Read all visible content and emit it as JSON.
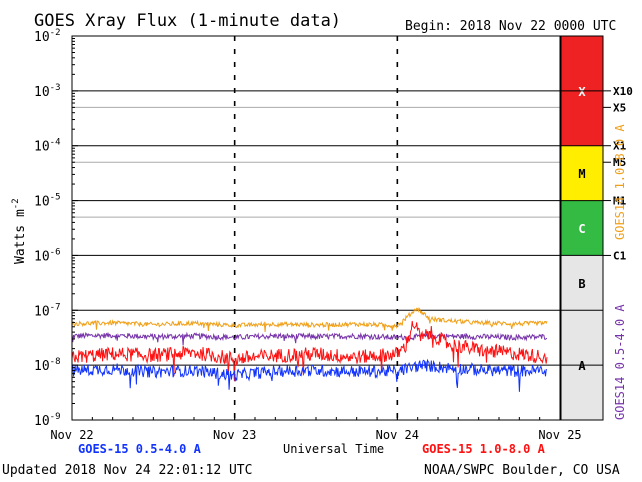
{
  "chart_data": {
    "type": "line",
    "title": "GOES Xray Flux (1-minute data)",
    "begin_label": "Begin:  2018 Nov 22 0000 UTC",
    "ylabel_main": "Watts m",
    "ylabel_exp": "-2",
    "xlabel": "Universal Time",
    "y_scale": "log",
    "ylim": [
      1e-09,
      0.01
    ],
    "xlim_days": [
      0,
      3
    ],
    "x_ticks": [
      "Nov 22",
      "Nov 23",
      "Nov 24",
      "Nov 25"
    ],
    "y_tick_exponents": [
      "-2",
      "-3",
      "-4",
      "-5",
      "-6",
      "-7",
      "-8",
      "-9"
    ],
    "y_tick_base": "10",
    "flare_classes": [
      {
        "label": "X",
        "from": 0.0001,
        "to": 0.01,
        "color": "#ee2222"
      },
      {
        "label": "M",
        "from": 1e-05,
        "to": 0.0001,
        "color": "#ffee00"
      },
      {
        "label": "C",
        "from": 1e-06,
        "to": 1e-05,
        "color": "#33bb44"
      },
      {
        "label": "B",
        "from": 1e-07,
        "to": 1e-06,
        "color": "#e6e6e6"
      },
      {
        "label": "A",
        "from": 1e-09,
        "to": 1e-07,
        "color": "#e6e6e6"
      }
    ],
    "level_markers": [
      {
        "label": "X10",
        "value": 0.001
      },
      {
        "label": "X5",
        "value": 0.0005
      },
      {
        "label": "X1",
        "value": 0.0001
      },
      {
        "label": "M5",
        "value": 5e-05
      },
      {
        "label": "M1",
        "value": 1e-05
      },
      {
        "label": "C1",
        "value": 1e-06
      }
    ],
    "series": [
      {
        "name": "GOES14 0.5-4.0 A",
        "color": "#7733aa",
        "points": [
          [
            0,
            3.4e-08
          ],
          [
            0.25,
            3.5e-08
          ],
          [
            0.5,
            3.3e-08
          ],
          [
            0.75,
            3.4e-08
          ],
          [
            1.0,
            3.2e-08
          ],
          [
            1.25,
            3.4e-08
          ],
          [
            1.5,
            3.3e-08
          ],
          [
            1.75,
            3.4e-08
          ],
          [
            2.0,
            3.2e-08
          ],
          [
            2.25,
            3.4e-08
          ],
          [
            2.5,
            3.3e-08
          ],
          [
            2.75,
            3.2e-08
          ],
          [
            2.92,
            3.3e-08
          ]
        ]
      },
      {
        "name": "GOES14 1.0-8.0 A",
        "color": "#f0a018",
        "points": [
          [
            0,
            5.7e-08
          ],
          [
            0.25,
            5.9e-08
          ],
          [
            0.5,
            5.5e-08
          ],
          [
            0.75,
            5.8e-08
          ],
          [
            1.0,
            5.3e-08
          ],
          [
            1.25,
            5.6e-08
          ],
          [
            1.5,
            5.4e-08
          ],
          [
            1.75,
            5.6e-08
          ],
          [
            2.0,
            5.3e-08
          ],
          [
            2.08,
            8.5e-08
          ],
          [
            2.12,
            1.1e-07
          ],
          [
            2.2,
            7e-08
          ],
          [
            2.3,
            6.5e-08
          ],
          [
            2.5,
            5.9e-08
          ],
          [
            2.75,
            5.7e-08
          ],
          [
            2.92,
            5.8e-08
          ]
        ]
      },
      {
        "name": "GOES-15 1.0-8.0 A",
        "color": "#ff1111",
        "points": [
          [
            0,
            1.4e-08
          ],
          [
            0.25,
            1.6e-08
          ],
          [
            0.5,
            1.5e-08
          ],
          [
            0.75,
            1.7e-08
          ],
          [
            1.0,
            1.3e-08
          ],
          [
            1.25,
            1.5e-08
          ],
          [
            1.5,
            1.6e-08
          ],
          [
            1.75,
            1.4e-08
          ],
          [
            2.0,
            1.6e-08
          ],
          [
            2.05,
            2.2e-08
          ],
          [
            2.1,
            6e-08
          ],
          [
            2.15,
            3e-08
          ],
          [
            2.2,
            4e-08
          ],
          [
            2.3,
            2.5e-08
          ],
          [
            2.5,
            1.9e-08
          ],
          [
            2.75,
            1.6e-08
          ],
          [
            2.92,
            1.4e-08
          ]
        ]
      },
      {
        "name": "GOES-15 0.5-4.0 A",
        "color": "#1133ff",
        "points": [
          [
            0,
            8e-09
          ],
          [
            0.25,
            8.5e-09
          ],
          [
            0.5,
            7.5e-09
          ],
          [
            0.75,
            8e-09
          ],
          [
            1.0,
            6.5e-09
          ],
          [
            1.25,
            7.8e-09
          ],
          [
            1.5,
            8e-09
          ],
          [
            1.75,
            7.6e-09
          ],
          [
            2.0,
            7.8e-09
          ],
          [
            2.15,
            1e-08
          ],
          [
            2.3,
            9e-09
          ],
          [
            2.5,
            8.2e-09
          ],
          [
            2.75,
            7.8e-09
          ],
          [
            2.92,
            8e-09
          ]
        ]
      }
    ],
    "legend": {
      "bottom_left": "GOES-15 0.5-4.0 A",
      "bottom_right": "GOES-15 1.0-8.0 A",
      "right_upper": "GOES14 1.0-8.0 A",
      "right_lower": "GOES14 0.5-4.0 A"
    },
    "grid": true
  },
  "footer": {
    "updated": "Updated 2018 Nov 24 22:01:12 UTC",
    "credit": "NOAA/SWPC Boulder, CO USA"
  },
  "colors": {
    "goes15_short": "#1133ff",
    "goes15_long": "#ff1111",
    "goes14_short": "#7733aa",
    "goes14_long": "#f0a018"
  }
}
